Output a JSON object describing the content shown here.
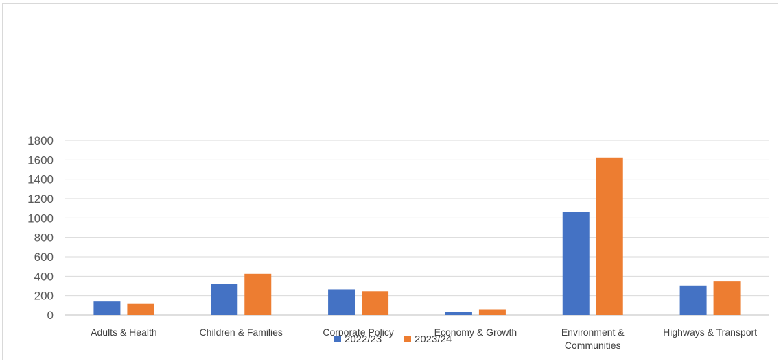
{
  "chart_data": {
    "type": "bar",
    "title": "",
    "xlabel": "",
    "ylabel": "",
    "ylim": [
      0,
      1800
    ],
    "yticks": [
      0,
      200,
      400,
      600,
      800,
      1000,
      1200,
      1400,
      1600,
      1800
    ],
    "grid": true,
    "legend_position": "bottom",
    "categories": [
      [
        "Adults & Health"
      ],
      [
        "Children & Families"
      ],
      [
        "Corporate Policy"
      ],
      [
        "Economy & Growth"
      ],
      [
        "Environment &",
        "Communities"
      ],
      [
        "Highways & Transport"
      ]
    ],
    "series": [
      {
        "name": "2022/23",
        "color": "#4472c4",
        "values": [
          140,
          320,
          265,
          35,
          1060,
          305
        ]
      },
      {
        "name": "2023/24",
        "color": "#ed7d31",
        "values": [
          115,
          425,
          245,
          60,
          1625,
          345
        ]
      }
    ]
  }
}
